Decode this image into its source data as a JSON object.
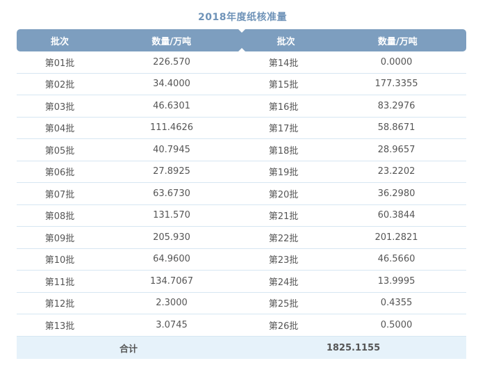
{
  "title": "2018年度纸核准量",
  "headers": {
    "col1": "批次",
    "col2": "数量/万吨",
    "col3": "批次",
    "col4": "数量/万吨"
  },
  "rows": [
    {
      "batch_left": "第01批",
      "qty_left": "226.570",
      "batch_right": "第14批",
      "qty_right": "0.0000"
    },
    {
      "batch_left": "第02批",
      "qty_left": "34.4000",
      "batch_right": "第15批",
      "qty_right": "177.3355"
    },
    {
      "batch_left": "第03批",
      "qty_left": "46.6301",
      "batch_right": "第16批",
      "qty_right": "83.2976"
    },
    {
      "batch_left": "第04批",
      "qty_left": "111.4626",
      "batch_right": "第17批",
      "qty_right": "58.8671"
    },
    {
      "batch_left": "第05批",
      "qty_left": "40.7945",
      "batch_right": "第18批",
      "qty_right": "28.9657"
    },
    {
      "batch_left": "第06批",
      "qty_left": "27.8925",
      "batch_right": "第19批",
      "qty_right": "23.2202"
    },
    {
      "batch_left": "第07批",
      "qty_left": "63.6730",
      "batch_right": "第20批",
      "qty_right": "36.2980"
    },
    {
      "batch_left": "第08批",
      "qty_left": "131.570",
      "batch_right": "第21批",
      "qty_right": "60.3844"
    },
    {
      "batch_left": "第09批",
      "qty_left": "205.930",
      "batch_right": "第22批",
      "qty_right": "201.2821"
    },
    {
      "batch_left": "第10批",
      "qty_left": "64.9600",
      "batch_right": "第23批",
      "qty_right": "46.5660"
    },
    {
      "batch_left": "第11批",
      "qty_left": "134.7067",
      "batch_right": "第24批",
      "qty_right": "13.9995"
    },
    {
      "batch_left": "第12批",
      "qty_left": "2.3000",
      "batch_right": "第25批",
      "qty_right": "0.4355"
    },
    {
      "batch_left": "第13批",
      "qty_left": "3.0745",
      "batch_right": "第26批",
      "qty_right": "0.5000"
    }
  ],
  "total": {
    "label": "合计",
    "value": "1825.1155"
  }
}
